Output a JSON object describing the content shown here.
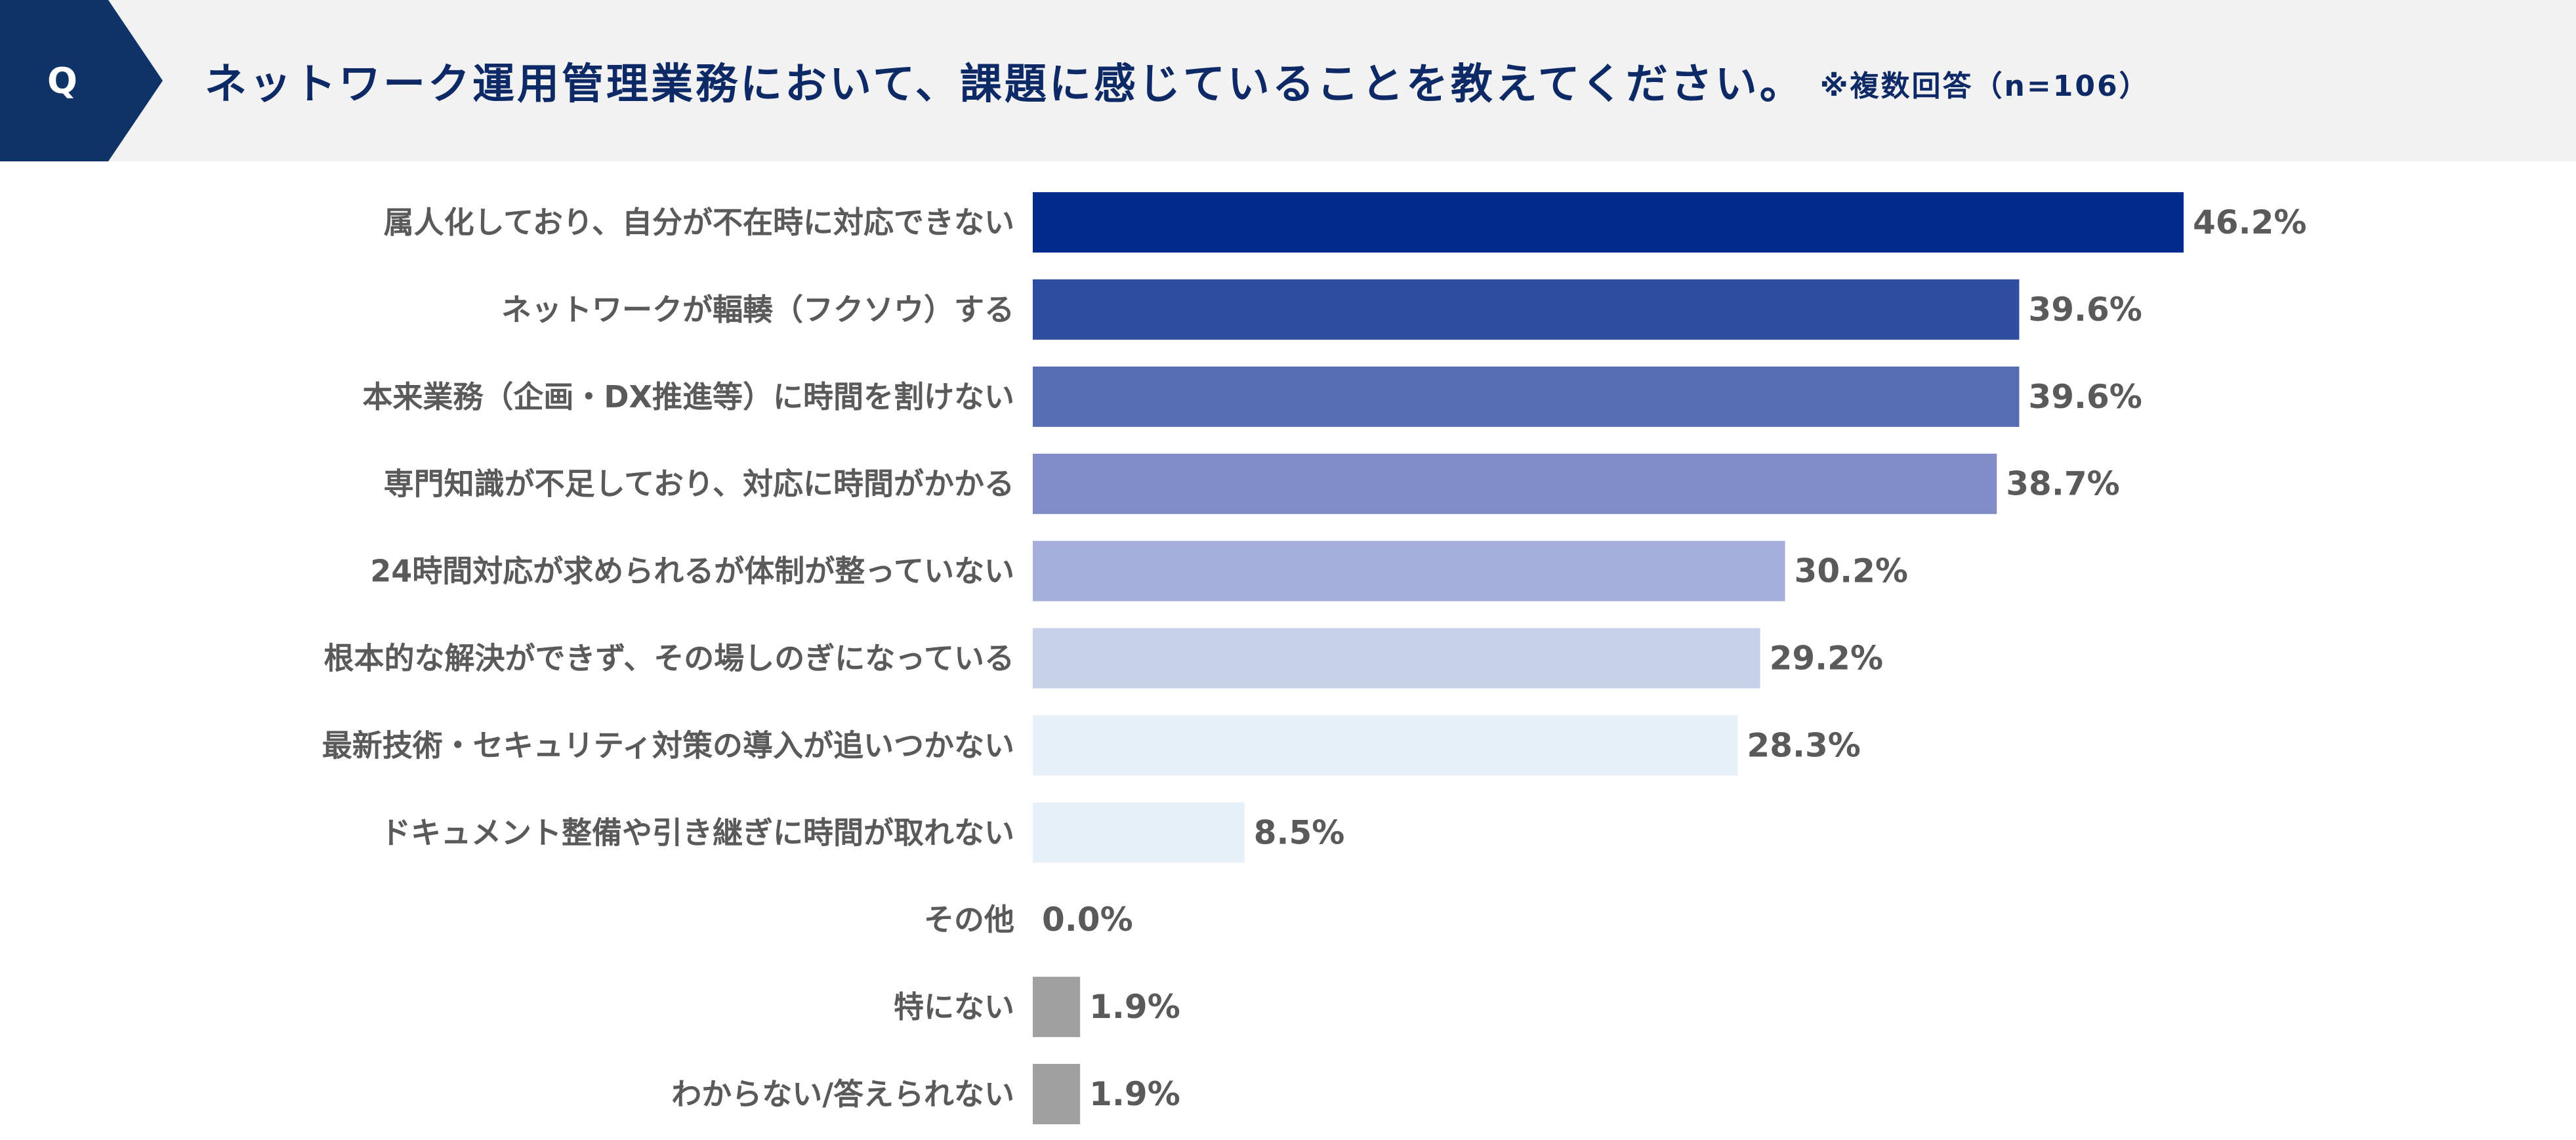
{
  "header": {
    "q_label": "Q",
    "question": "ネットワーク運用管理業務において、課題に感じていることを教えてください。",
    "note": "※複数回答（n=106）"
  },
  "colors": {
    "header_bg": "#f2f2f2",
    "badge": "#0f3366"
  },
  "chart_data": {
    "type": "bar",
    "orientation": "horizontal",
    "title": "ネットワーク運用管理業務において、課題に感じていることを教えてください。",
    "categories": [
      "属人化しており、自分が不在時に対応できない",
      "ネットワークが輻輳（フクソウ）する",
      "本来業務（企画・DX推進等）に時間を割けない",
      "専門知識が不足しており、対応に時間がかかる",
      "24時間対応が求められるが体制が整っていない",
      "根本的な解決ができず、その場しのぎになっている",
      "最新技術・セキュリティ対策の導入が追いつかない",
      "ドキュメント整備や引き継ぎに時間が取れない",
      "その他",
      "特にない",
      "わからない/答えられない"
    ],
    "values": [
      46.2,
      39.6,
      39.6,
      38.7,
      30.2,
      29.2,
      28.3,
      8.5,
      0.0,
      1.9,
      1.9
    ],
    "value_labels": [
      "46.2%",
      "39.6%",
      "39.6%",
      "38.7%",
      "30.2%",
      "29.2%",
      "28.3%",
      "8.5%",
      "0.0%",
      "1.9%",
      "1.9%"
    ],
    "bar_colors": [
      "#002a8c",
      "#2f4ea0",
      "#566db4",
      "#7f8cc5",
      "#a4b0db",
      "#c6d1ea",
      "#e7eff9",
      "#e7eff9",
      "#a0a0a0",
      "#a0a0a0",
      "#a0a0a0"
    ],
    "xlim": [
      0,
      46.2
    ],
    "n": 106
  }
}
